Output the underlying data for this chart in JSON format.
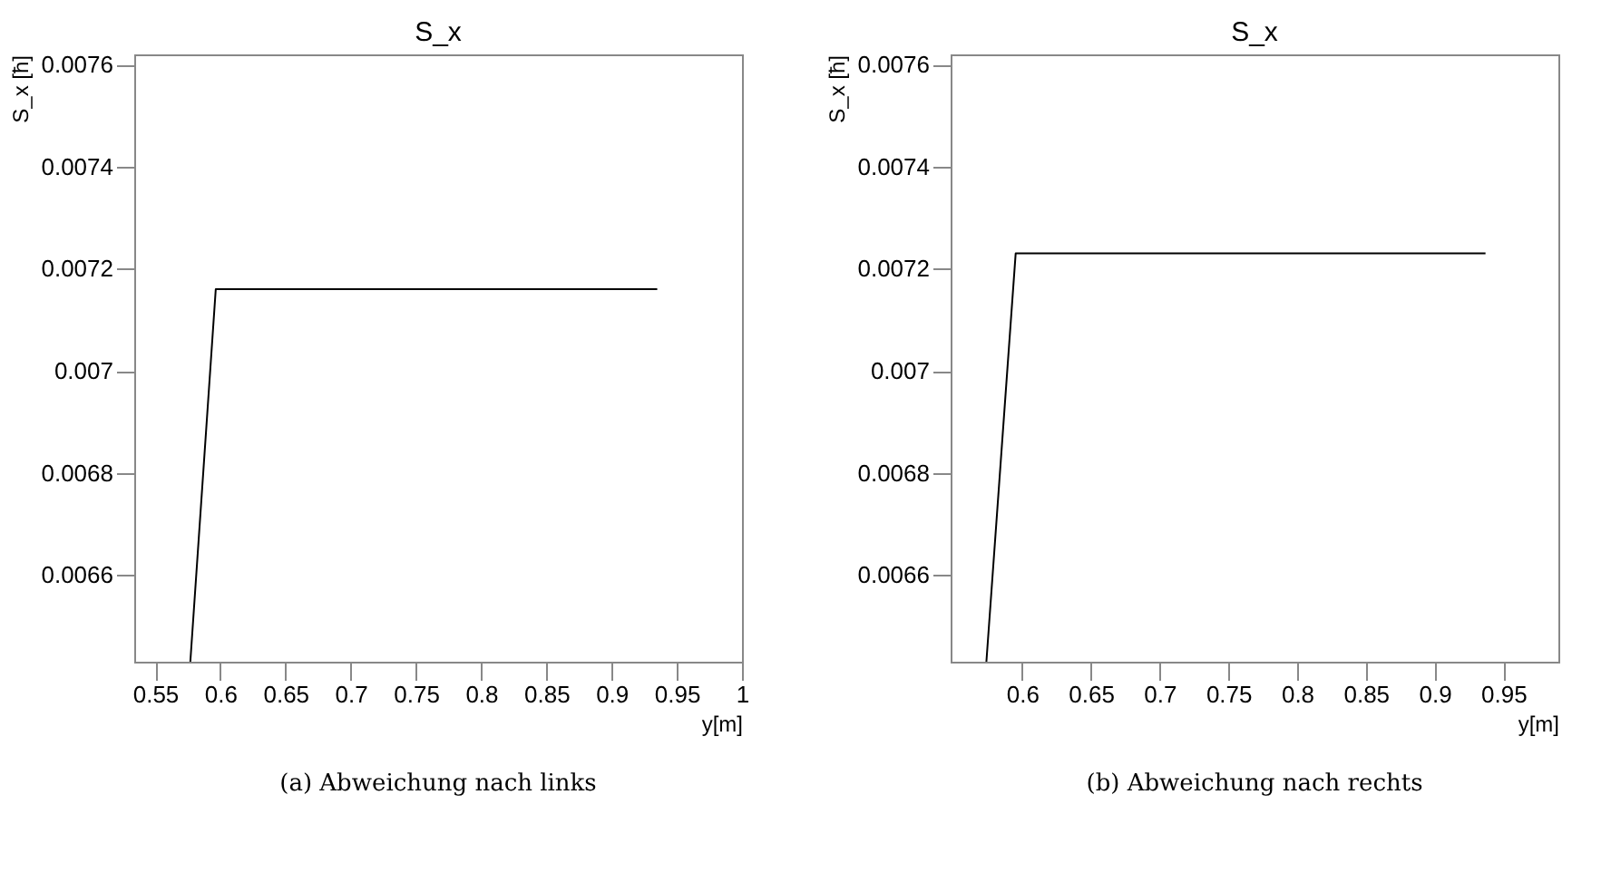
{
  "chart_data": [
    {
      "type": "line",
      "title": "S_x",
      "xlabel": "y[m]",
      "ylabel": "S_x [ħ]",
      "annotations": [
        "(a) Abweichung nach links"
      ],
      "xlim": [
        0.534,
        1.0
      ],
      "xticks": [
        0.55,
        0.6,
        0.65,
        0.7,
        0.75,
        0.8,
        0.85,
        0.9,
        0.95,
        1
      ],
      "ylim": [
        0.00643,
        0.00762
      ],
      "yticks": [
        0.0066,
        0.0068,
        0.007,
        0.0072,
        0.0074,
        0.0076
      ],
      "grid": false,
      "legend": false,
      "series": [
        {
          "color": "#000000",
          "x": [
            0.577,
            0.5965,
            0.935
          ],
          "values": [
            0.00643,
            0.00716,
            0.00716
          ]
        }
      ]
    },
    {
      "type": "line",
      "title": "S_x",
      "xlabel": "y[m]",
      "ylabel": "S_x [ħ]",
      "annotations": [
        "(b) Abweichung nach rechts"
      ],
      "xlim": [
        0.548,
        0.99
      ],
      "xticks": [
        0.6,
        0.65,
        0.7,
        0.75,
        0.8,
        0.85,
        0.9,
        0.95
      ],
      "ylim": [
        0.00643,
        0.00762
      ],
      "yticks": [
        0.0066,
        0.0068,
        0.007,
        0.0072,
        0.0074,
        0.0076
      ],
      "grid": false,
      "legend": false,
      "series": [
        {
          "color": "#000000",
          "x": [
            0.574,
            0.5953,
            0.937
          ],
          "values": [
            0.00643,
            0.00723,
            0.00723
          ]
        }
      ]
    }
  ]
}
